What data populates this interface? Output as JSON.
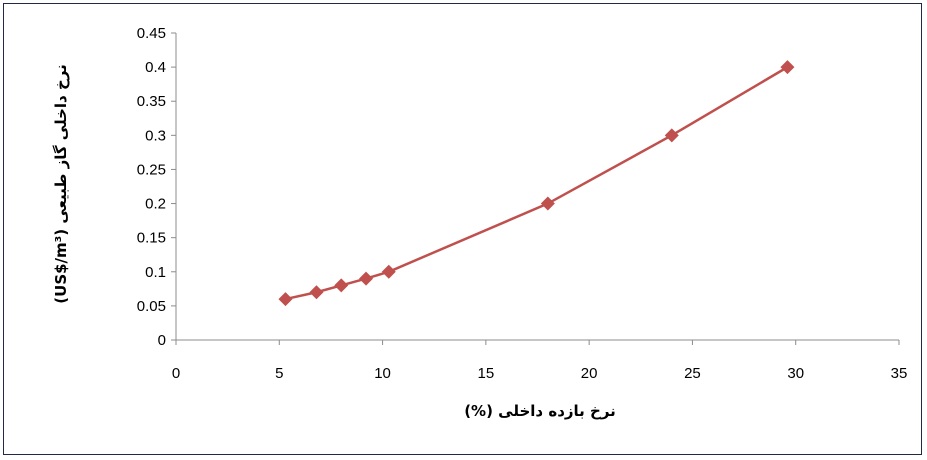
{
  "chart_data": {
    "type": "scatter",
    "title": "",
    "xlabel": "نرخ بازده داخلی (%)",
    "ylabel": "نرخ داخلی گاز طبیعی (US$/m³)",
    "xlim": [
      0,
      35
    ],
    "ylim": [
      0,
      0.45
    ],
    "x_ticks": [
      "0",
      "5",
      "10",
      "15",
      "20",
      "25",
      "30",
      "35"
    ],
    "y_ticks": [
      "0",
      "0.05",
      "0.1",
      "0.15",
      "0.2",
      "0.25",
      "0.3",
      "0.35",
      "0.4",
      "0.45"
    ],
    "grid": false,
    "legend": "none",
    "series": [
      {
        "color": "#c0504d",
        "marker": "diamond",
        "line": true,
        "x": [
          5.3,
          6.8,
          8.0,
          9.2,
          10.3,
          18.0,
          24.0,
          29.6
        ],
        "y": [
          0.06,
          0.07,
          0.08,
          0.09,
          0.1,
          0.2,
          0.3,
          0.4
        ]
      }
    ]
  }
}
